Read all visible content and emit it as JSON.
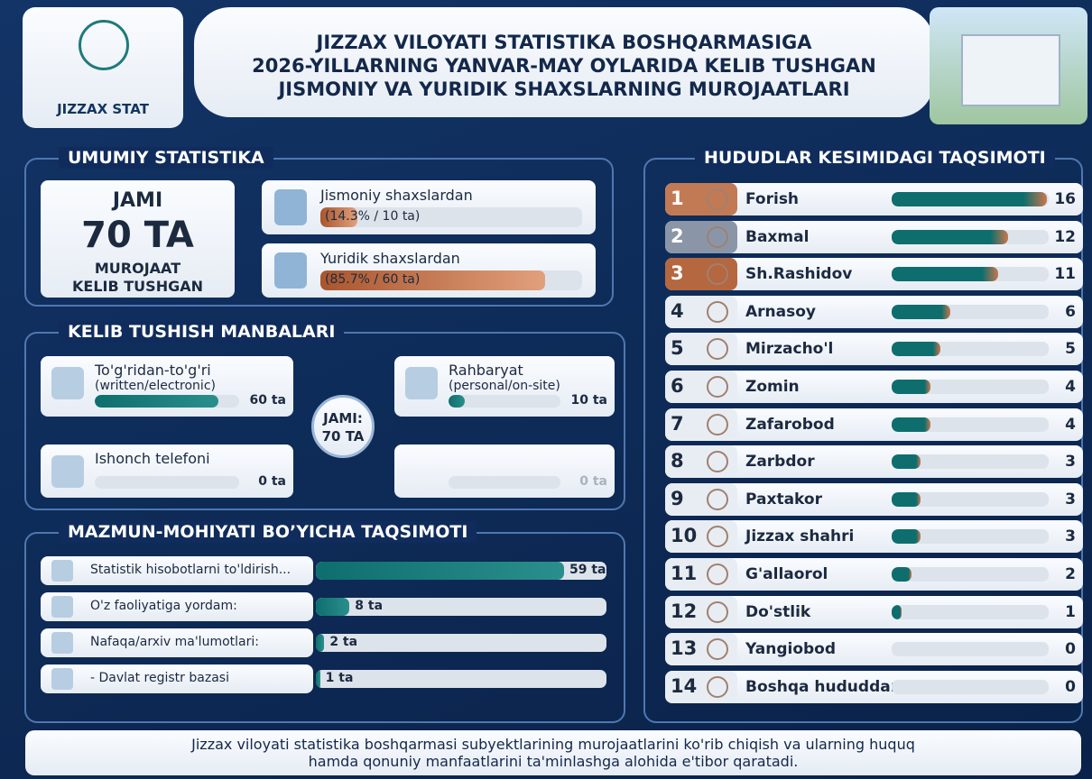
{
  "header": {
    "logo_text": "JIZZAX STAT",
    "title_lines": [
      "JIZZAX VILOYATI STATISTIKA BOSHQARMASIGA",
      "2026-YILLARNING YANVAR-MAY OYLARIDA KELIB TUSHGAN",
      "JISMONIY VA YURIDIK SHAXSLARNING MUROJAATLARI"
    ]
  },
  "general": {
    "title": "UMUMIY STATISTIKA",
    "total_top": "JAMI",
    "total": {
      "value": 70,
      "label": "70 TA"
    },
    "total_bottom": [
      "MUROJAAT",
      "KELIB TUSHGAN"
    ],
    "items": [
      {
        "name": "Jismoniy shaxslardan",
        "value": 10,
        "value_label": "(14.3% / 10 ta)"
      },
      {
        "name": "Yuridik shaxslardan",
        "value": 60,
        "value_label": "(85.7% / 60 ta)"
      }
    ]
  },
  "sources": {
    "title": "KELIB TUSHISH MANBALARI",
    "center": [
      "JAMI:",
      "70 TA"
    ],
    "items": [
      {
        "name": "To'g'ridan-to'g'ri",
        "sub": "(written/electronic)",
        "value": 60,
        "value_label": "60 ta"
      },
      {
        "name": "Rahbaryat",
        "sub": "(personal/on-site)",
        "value": 10,
        "value_label": "10 ta"
      },
      {
        "name": "Ishonch telefoni",
        "value": 0,
        "value_label": "0 ta"
      },
      {
        "value": 0,
        "value_label": "0 ta"
      }
    ]
  },
  "content": {
    "title": "MAZMUN-MOHIYATI BO’YICHA TAQSIMOTI",
    "items": [
      {
        "name": "Statistik hisobotlarni to'ldirish...",
        "value": 59,
        "value_label": "59 ta"
      },
      {
        "name": "O'z faoliyatiga yordam:",
        "value": 8,
        "value_label": "8 ta"
      },
      {
        "name": "Nafaqa/arxiv ma'lumotlari:",
        "value": 2,
        "value_label": "2 ta"
      },
      {
        "name": "- Davlat registr bazasi",
        "value": 1,
        "value_label": "1 ta"
      }
    ]
  },
  "regions": {
    "title": "HUDUDLAR KESIMIDAGI TAQSIMOTI",
    "items": [
      {
        "rank": 1,
        "name": "Forish",
        "value": 16
      },
      {
        "rank": 2,
        "name": "Baxmal",
        "value": 12
      },
      {
        "rank": 3,
        "name": "Sh.Rashidov",
        "value": 11
      },
      {
        "rank": 4,
        "name": "Arnasoy",
        "value": 6
      },
      {
        "rank": 5,
        "name": "Mirzacho'l",
        "value": 5
      },
      {
        "rank": 6,
        "name": "Zomin",
        "value": 4
      },
      {
        "rank": 7,
        "name": "Zafarobod",
        "value": 4
      },
      {
        "rank": 8,
        "name": "Zarbdor",
        "value": 3
      },
      {
        "rank": 9,
        "name": "Paxtakor",
        "value": 3
      },
      {
        "rank": 10,
        "name": "Jizzax shahri",
        "value": 3
      },
      {
        "rank": 11,
        "name": "G'allaorol",
        "value": 2
      },
      {
        "rank": 12,
        "name": "Do'stlik",
        "value": 1
      },
      {
        "rank": 13,
        "name": "Yangiobod",
        "value": 0
      },
      {
        "rank": 14,
        "name": "Boshqa hududdan",
        "value": 0
      }
    ]
  },
  "footer": [
    "Jizzax viloyati statistika boshqarmasi subyektlarining murojaatlarini ko'rib chiqish va ularning huquq",
    "hamda qonuniy manfaatlarini ta'minlashga alohida e'tibor qaratadi."
  ]
}
